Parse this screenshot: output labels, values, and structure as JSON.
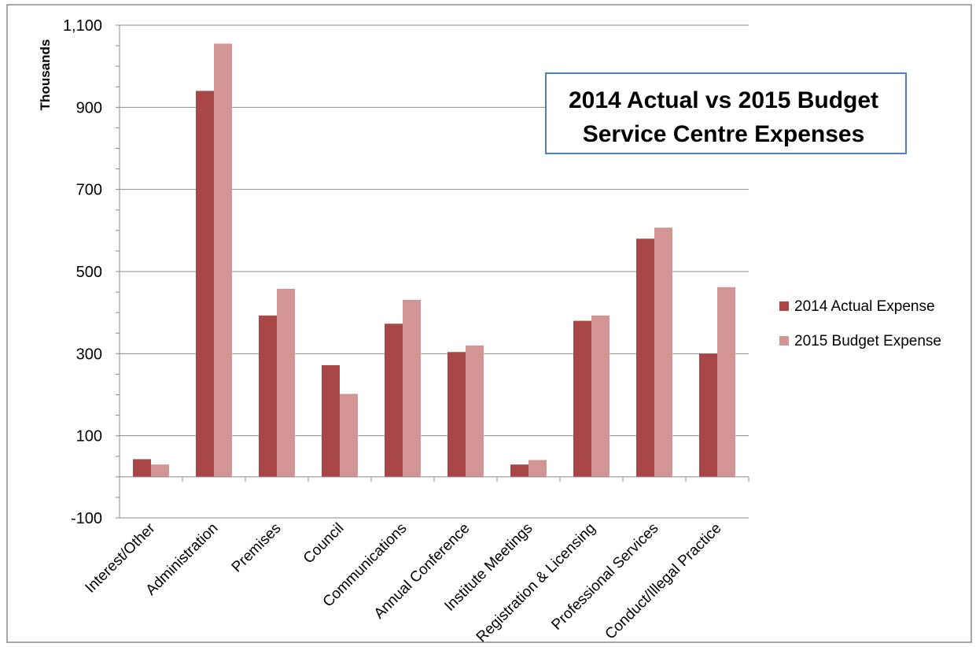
{
  "chart_data": {
    "type": "bar",
    "title_lines": [
      "2014 Actual vs 2015 Budget",
      "Service Centre Expenses"
    ],
    "ylabel": "Thousands",
    "ylim": [
      -100,
      1100
    ],
    "yticks": [
      -100,
      100,
      300,
      500,
      700,
      900,
      1100
    ],
    "ytick_labels": [
      "-100",
      "100",
      "300",
      "500",
      "700",
      "900",
      "1,100"
    ],
    "categories": [
      "Interest/Other",
      "Administration",
      "Premises",
      "Council",
      "Communications",
      "Annual Conference",
      "Institute Meetings",
      "Registration & Licensing",
      "Professional Services",
      "Conduct/Illegal Practice"
    ],
    "series": [
      {
        "name": "2014 Actual Expense",
        "color": "#a94646",
        "values": [
          43,
          940,
          393,
          272,
          373,
          304,
          30,
          380,
          580,
          300
        ]
      },
      {
        "name": "2015 Budget Expense",
        "color": "#d39494",
        "values": [
          30,
          1055,
          458,
          202,
          431,
          320,
          41,
          393,
          607,
          462
        ]
      }
    ],
    "grid": "horizontal",
    "legend_position": "right"
  }
}
